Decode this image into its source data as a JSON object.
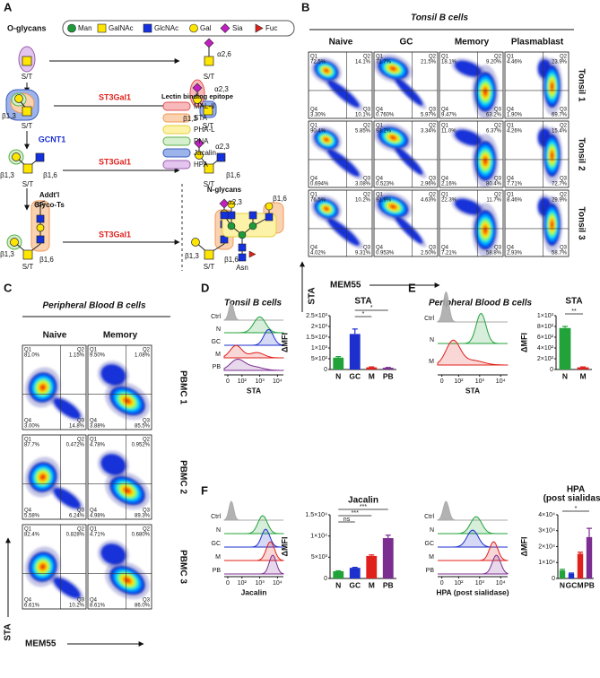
{
  "panel_a": {
    "letter": "A",
    "title": "O-glycans",
    "legend": [
      "Man",
      "GalNAc",
      "GlcNAc",
      "Gal",
      "Sia",
      "Fuc"
    ],
    "labels": [
      "S/T",
      "α2,6",
      "S/T",
      "β1,3",
      "S/T",
      "ST3Gal1",
      "α2,3",
      "β1,3",
      "S/T",
      "GCNT1",
      "β1,3",
      "β1,6",
      "S/T",
      "ST3Gal1",
      "α2,3",
      "β1,6",
      "S/T",
      "Addt'l",
      "Glyco-Ts",
      "β1,3",
      "β1,6",
      "S/T",
      "ST3Gal1",
      "α2,3",
      "β1,3",
      "β1,6",
      "S/T",
      "N-glycans",
      "β1,6",
      "Asn"
    ],
    "lectin_legend": {
      "title": "Lectin binding epitope",
      "items": [
        "MAL-II",
        "STA",
        "PHA-L",
        "PNA",
        "Jacalin",
        "HPA"
      ]
    }
  },
  "panel_b": {
    "letter": "B",
    "title": "Tonsil B cells",
    "columns": [
      "Naive",
      "GC",
      "Memory",
      "Plasmablast"
    ],
    "rows": [
      "Tonsil 1",
      "Tonsil 2",
      "Tonsil 3"
    ],
    "gate_names": [
      "Q1",
      "Q2",
      "Q4",
      "Q3"
    ],
    "plots": [
      [
        [
          "72.5%",
          "14.1%",
          "3.30%",
          "10.1%"
        ],
        [
          "71.7%",
          "21.5%",
          "0.760%",
          "5.97%"
        ],
        [
          "18.1%",
          "9.20%",
          "9.47%",
          "63.2%"
        ],
        [
          "4.46%",
          "23.9%",
          "1.90%",
          "69.7%"
        ]
      ],
      [
        [
          "90.4%",
          "5.85%",
          "0.694%",
          "3.08%"
        ],
        [
          "93.2%",
          "3.34%",
          "0.523%",
          "2.96%"
        ],
        [
          "11.0%",
          "6.37%",
          "2.16%",
          "80.4%"
        ],
        [
          "4.26%",
          "15.4%",
          "7.71%",
          "72.7%"
        ]
      ],
      [
        [
          "76.5%",
          "10.2%",
          "4.02%",
          "9.31%"
        ],
        [
          "91.9%",
          "4.63%",
          "0.953%",
          "2.50%"
        ],
        [
          "22.3%",
          "11.7%",
          "7.21%",
          "58.8%"
        ],
        [
          "8.46%",
          "29.9%",
          "2.93%",
          "58.7%"
        ]
      ]
    ],
    "y_label": "STA",
    "x_label": "MEM55"
  },
  "panel_c": {
    "letter": "C",
    "title": "Peripheral Blood B cells",
    "columns": [
      "Naive",
      "Memory"
    ],
    "rows": [
      "PBMC 1",
      "PBMC 2",
      "PBMC 3"
    ],
    "gate_names": [
      "Q1",
      "Q2",
      "Q4",
      "Q3"
    ],
    "plots": [
      [
        [
          "81.0%",
          "1.15%",
          "3.00%",
          "14.8%"
        ],
        [
          "9.50%",
          "1.08%",
          "3.88%",
          "85.5%"
        ]
      ],
      [
        [
          "87.7%",
          "0.472%",
          "5.58%",
          "6.24%"
        ],
        [
          "4.78%",
          "0.952%",
          "4.98%",
          "89.3%"
        ]
      ],
      [
        [
          "82.4%",
          "0.828%",
          "6.61%",
          "10.2%"
        ],
        [
          "4.71%",
          "0.680%",
          "8.61%",
          "86.0%"
        ]
      ]
    ],
    "y_label": "STA",
    "x_label": "MEM55"
  },
  "panel_d": {
    "letter": "D",
    "title": "Tonsil B cells",
    "histogram": {
      "rows": [
        "Ctrl",
        "N",
        "GC",
        "M",
        "PB"
      ],
      "x_ticks": [
        "0",
        "10²",
        "10³",
        "10⁴"
      ],
      "x_label": "STA"
    }
  },
  "panel_e": {
    "letter": "E",
    "title": "Peripheral Blood B cells",
    "histogram": {
      "rows": [
        "Ctrl",
        "N",
        "M"
      ],
      "x_ticks": [
        "0",
        "10²",
        "10³",
        "10⁴"
      ],
      "x_label": "STA"
    }
  },
  "panel_f": {
    "letter": "F",
    "histograms": [
      {
        "rows": [
          "Ctrl",
          "N",
          "GC",
          "M",
          "PB"
        ],
        "x_ticks": [
          "0",
          "10²",
          "10³",
          "10⁴"
        ],
        "x_label": "Jacalin"
      },
      {
        "rows": [
          "Ctrl",
          "N",
          "GC",
          "M",
          "PB"
        ],
        "x_ticks": [
          "0",
          "10²",
          "10³",
          "10⁴"
        ],
        "x_label": "HPA (post sialidase)"
      }
    ]
  },
  "chart_data": [
    {
      "type": "bar",
      "title": "STA",
      "y_label": "ΔMFI",
      "categories": [
        "N",
        "GC",
        "M",
        "PB"
      ],
      "values": [
        550,
        1650,
        100,
        80
      ],
      "errors": [
        50,
        230,
        20,
        15
      ],
      "colors": [
        "#22a33a",
        "#1d2fcc",
        "#e0201b",
        "#7b2d90"
      ],
      "ylim": [
        0,
        2500
      ],
      "yticks": [
        0,
        {
          "value": 500,
          "label": "5×10²"
        },
        {
          "value": 1000,
          "label": "1×10³"
        },
        {
          "value": 1500,
          "label": "1.5×10³"
        },
        {
          "value": 2000,
          "label": "2×10³"
        },
        {
          "value": 2500,
          "label": "2.5×10³"
        }
      ],
      "significance": [
        "*",
        "*"
      ]
    },
    {
      "type": "bar",
      "title": "STA",
      "y_label": "ΔMFI",
      "categories": [
        "N",
        "M"
      ],
      "values": [
        770,
        40
      ],
      "errors": [
        30,
        8
      ],
      "colors": [
        "#22a33a",
        "#e0201b"
      ],
      "ylim": [
        0,
        1000
      ],
      "yticks": [
        0,
        {
          "value": 200,
          "label": "2×10²"
        },
        {
          "value": 400,
          "label": "4×10²"
        },
        {
          "value": 600,
          "label": "6×10²"
        },
        {
          "value": 800,
          "label": "8×10²"
        },
        {
          "value": 1000,
          "label": "1×10³"
        }
      ],
      "significance": [
        "**"
      ]
    },
    {
      "type": "bar",
      "title": "Jacalin",
      "y_label": "ΔMFI",
      "categories": [
        "N",
        "GC",
        "M",
        "PB"
      ],
      "values": [
        1700,
        2500,
        5300,
        9500
      ],
      "errors": [
        100,
        120,
        250,
        700
      ],
      "colors": [
        "#22a33a",
        "#1d2fcc",
        "#e0201b",
        "#7b2d90"
      ],
      "ylim": [
        0,
        15000
      ],
      "yticks": [
        0,
        {
          "value": 5000,
          "label": "5×10³"
        },
        {
          "value": 10000,
          "label": "1×10⁴"
        },
        {
          "value": 15000,
          "label": "1.5×10⁴"
        }
      ],
      "significance": [
        "ns",
        "***",
        "***"
      ]
    },
    {
      "type": "bar",
      "title": "HPA",
      "subtitle": "(post sialidase)",
      "y_label": "ΔMFI",
      "categories": [
        "N",
        "GC",
        "M",
        "PB"
      ],
      "values": [
        5000,
        3000,
        15500,
        26000
      ],
      "errors": [
        700,
        400,
        1000,
        5500
      ],
      "colors": [
        "#22a33a",
        "#1d2fcc",
        "#e0201b",
        "#7b2d90"
      ],
      "ylim": [
        0,
        40000
      ],
      "yticks": [
        0,
        {
          "value": 10000,
          "label": "1×10⁴"
        },
        {
          "value": 20000,
          "label": "2×10⁴"
        },
        {
          "value": 30000,
          "label": "3×10⁴"
        },
        {
          "value": 40000,
          "label": "4×10⁴"
        }
      ],
      "significance": [
        "*"
      ]
    }
  ]
}
